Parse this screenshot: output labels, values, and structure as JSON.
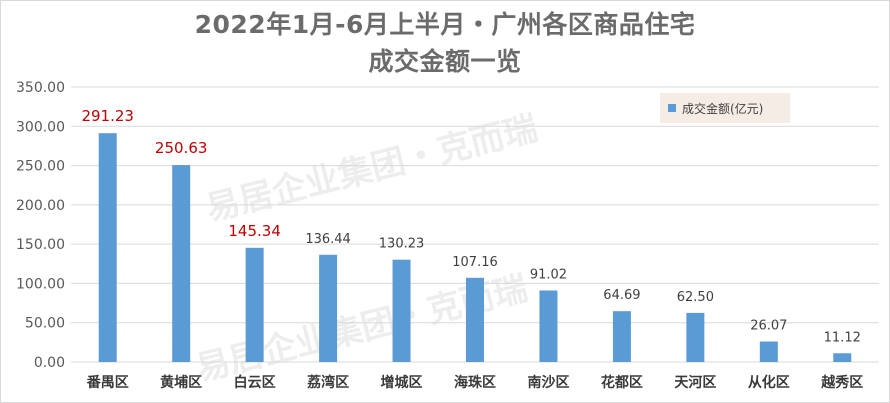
{
  "chart_data": {
    "type": "bar",
    "title_line1": "2022年1月-6月上半月・广州各区商品住宅",
    "title_line2": "成交金额一览",
    "categories": [
      "番禺区",
      "黄埔区",
      "白云区",
      "荔湾区",
      "增城区",
      "海珠区",
      "南沙区",
      "花都区",
      "天河区",
      "从化区",
      "越秀区"
    ],
    "series": [
      {
        "name": "成交金额(亿元)",
        "values": [
          291.23,
          250.63,
          145.34,
          136.44,
          130.23,
          107.16,
          91.02,
          64.69,
          62.5,
          26.07,
          11.12
        ],
        "data_labels": [
          "291.23",
          "250.63",
          "145.34",
          "136.44",
          "130.23",
          "107.16",
          "91.02",
          "64.69",
          "62.50",
          "26.07",
          "11.12"
        ]
      }
    ],
    "highlighted_labels": [
      0,
      1,
      2
    ],
    "ylim": [
      0,
      350
    ],
    "yticks": [
      "0.00",
      "50.00",
      "100.00",
      "150.00",
      "200.00",
      "250.00",
      "300.00",
      "350.00"
    ],
    "grid": true,
    "legend_position": "top-right",
    "colors": {
      "bar": "#5b9bd5",
      "highlight_label": "#c00000",
      "label": "#404040",
      "grid": "#d9d9d9",
      "axis_text": "#595959"
    }
  },
  "watermark_text": "易居企业集团・克而瑞"
}
